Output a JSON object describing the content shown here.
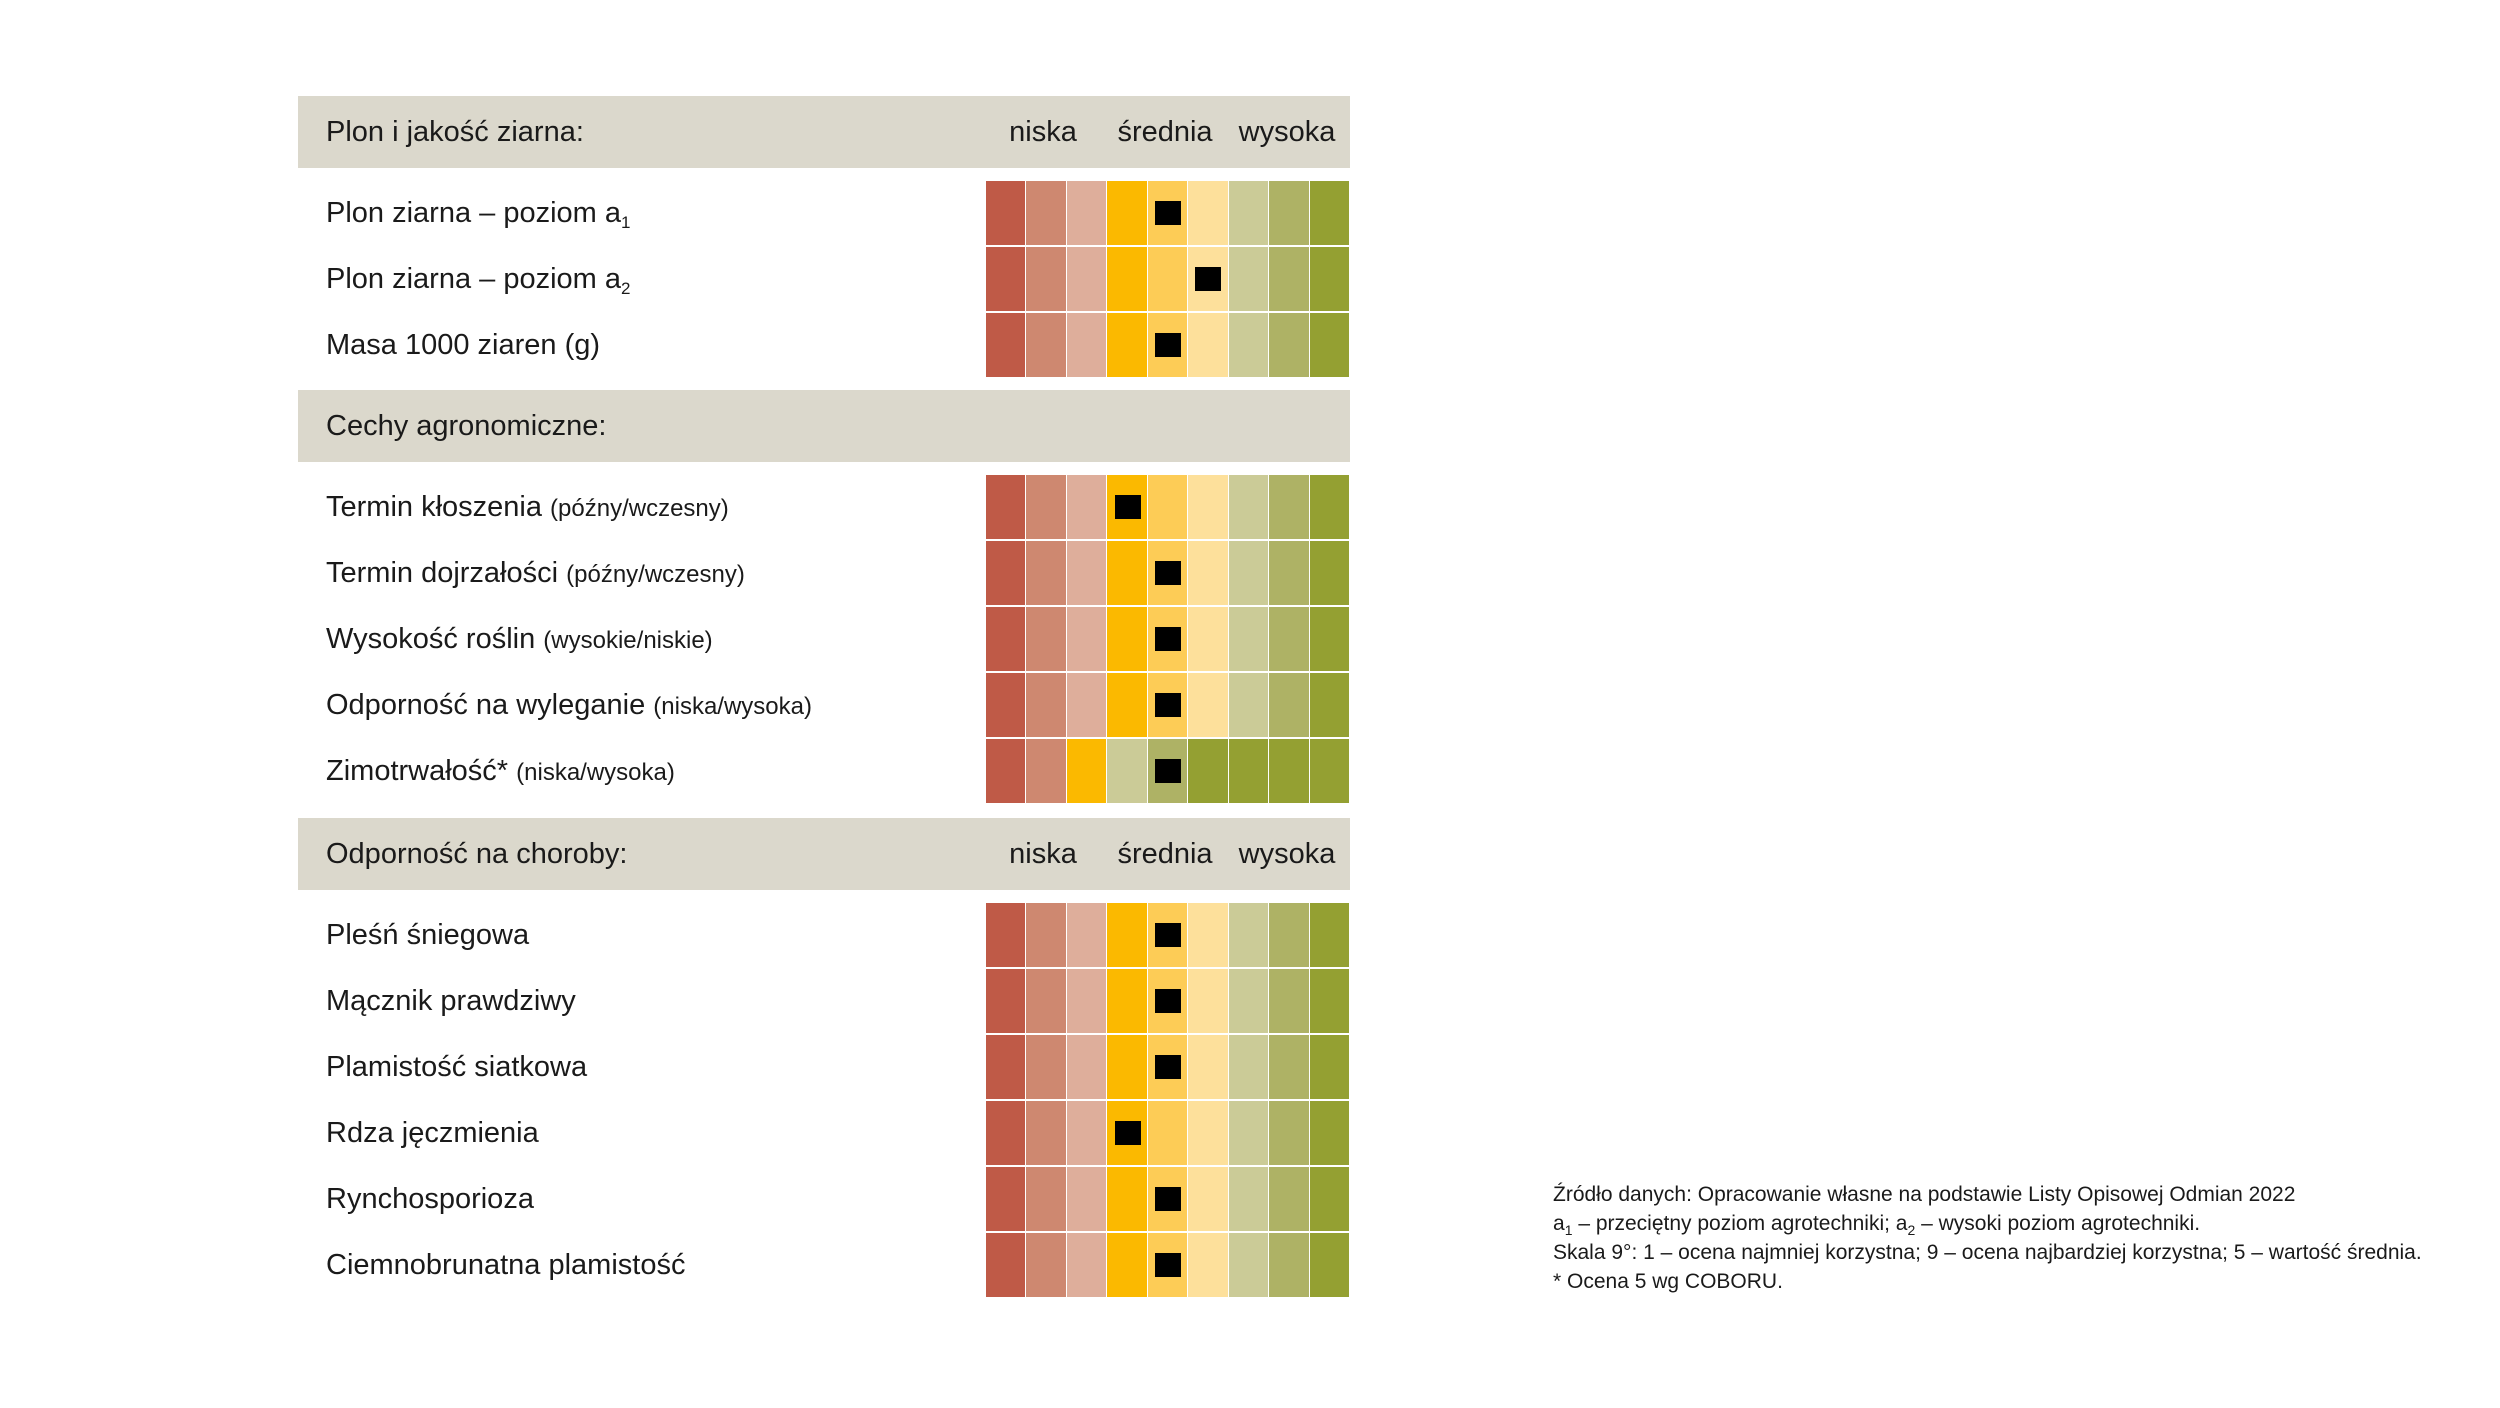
{
  "colors": {
    "header_bg": "#dbd8cc",
    "scale9": [
      "#bf5a47",
      "#ce8870",
      "#deae9b",
      "#fbb900",
      "#fdcc56",
      "#fde09b",
      "#cbcb97",
      "#aeb265",
      "#94a032"
    ],
    "scale_winter": [
      "#bf5a47",
      "#ce8870",
      "#fbb900",
      "#cbcb97",
      "#aeb265",
      "#94a032",
      "#94a032",
      "#94a032",
      "#94a032"
    ]
  },
  "sections": [
    {
      "title": "Plon i jakość ziarna:",
      "scale_labels": [
        "niska",
        "średnia",
        "wysoka"
      ],
      "rows": [
        {
          "label": "Plon ziarna – poziom a",
          "sub": "1",
          "note": "",
          "score": 5
        },
        {
          "label": "Plon ziarna – poziom a",
          "sub": "2",
          "note": "",
          "score": 6
        },
        {
          "label": "Masa 1000 ziaren (g)",
          "sub": "",
          "note": "",
          "score": 5
        }
      ]
    },
    {
      "title": "Cechy agronomiczne:",
      "scale_labels": [],
      "rows": [
        {
          "label": "Termin kłoszenia",
          "sub": "",
          "note": "(późny/wczesny)",
          "score": 4
        },
        {
          "label": "Termin dojrzałości",
          "sub": "",
          "note": "(późny/wczesny)",
          "score": 5
        },
        {
          "label": "Wysokość roślin",
          "sub": "",
          "note": "(wysokie/niskie)",
          "score": 5
        },
        {
          "label": "Odporność na wyleganie",
          "sub": "",
          "note": "(niska/wysoka)",
          "score": 5
        },
        {
          "label": "Zimotrwałość*",
          "sub": "",
          "note": "(niska/wysoka)",
          "score": 5,
          "palette": "scale_winter"
        }
      ]
    },
    {
      "title": "Odporność na choroby:",
      "scale_labels": [
        "niska",
        "średnia",
        "wysoka"
      ],
      "rows": [
        {
          "label": "Pleśń śniegowa",
          "sub": "",
          "note": "",
          "score": 5
        },
        {
          "label": "Mącznik prawdziwy",
          "sub": "",
          "note": "",
          "score": 5
        },
        {
          "label": "Plamistość siatkowa",
          "sub": "",
          "note": "",
          "score": 5
        },
        {
          "label": "Rdza jęczmienia",
          "sub": "",
          "note": "",
          "score": 4
        },
        {
          "label": "Rynchosporioza",
          "sub": "",
          "note": "",
          "score": 5
        },
        {
          "label": "Ciemnobrunatna plamistość",
          "sub": "",
          "note": "",
          "score": 5
        }
      ]
    }
  ],
  "chart_data": {
    "type": "table",
    "scale": "1-9",
    "scale_labels": [
      "niska",
      "średnia",
      "wysoka"
    ],
    "categories": [
      "Plon ziarna – poziom a1",
      "Plon ziarna – poziom a2",
      "Masa 1000 ziaren (g)",
      "Termin kłoszenia",
      "Termin dojrzałości",
      "Wysokość roślin",
      "Odporność na wyleganie",
      "Zimotrwałość*",
      "Pleśń śniegowa",
      "Mącznik prawdziwy",
      "Plamistość siatkowa",
      "Rdza jęczmienia",
      "Rynchosporioza",
      "Ciemnobrunatna plamistość"
    ],
    "values": [
      5,
      6,
      5,
      4,
      5,
      5,
      5,
      5,
      5,
      5,
      5,
      4,
      5,
      5
    ]
  },
  "notes": [
    {
      "text": "Źródło danych: Opracowanie własne na podstawie Listy Opisowej Odmian 2022"
    },
    {
      "parts": [
        "a",
        "1",
        " – przeciętny poziom agrotechniki; a",
        "2",
        " – wysoki poziom agrotechniki."
      ]
    },
    {
      "text": "Skala 9°: 1 – ocena najmniej korzystna; 9 – ocena najbardziej korzystna; 5 – wartość średnia."
    },
    {
      "text": "* Ocena 5 wg COBORU."
    }
  ]
}
